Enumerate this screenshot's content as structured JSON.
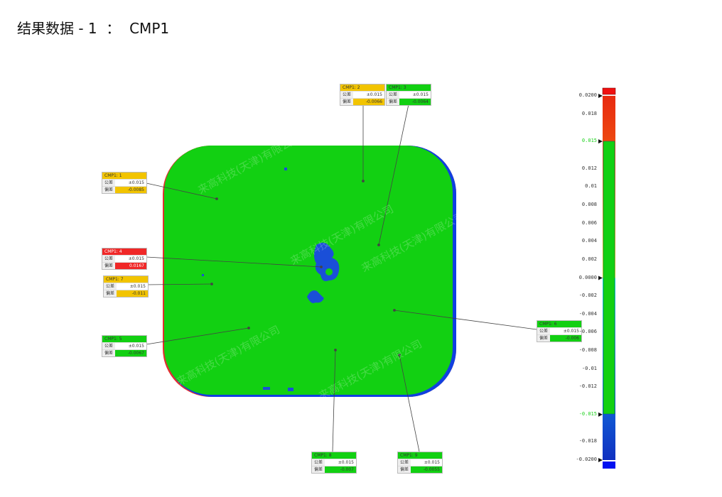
{
  "header": {
    "title": "结果数据 - 1",
    "separator": "：",
    "name": "CMP1"
  },
  "watermark": "来高科技(天津)有限公司",
  "labels": {
    "tolerance": "公差",
    "deviation": "偏差"
  },
  "colors": {
    "in_tolerance": "#12d012",
    "warning": "#f2c400",
    "out_of_tolerance": "#f02828",
    "surface": "#12d012",
    "low_deviation": "#1046d8"
  },
  "callouts": [
    {
      "id": "CMP1: 1",
      "tolerance": "±0.015",
      "deviation": "-0.0085",
      "status": "warning"
    },
    {
      "id": "CMP1: 2",
      "tolerance": "±0.015",
      "deviation": "-0.0066",
      "status": "warning"
    },
    {
      "id": "CMP1: 3",
      "tolerance": "±0.015",
      "deviation": "-0.0064",
      "status": "ok"
    },
    {
      "id": "CMP1: 4",
      "tolerance": "±0.015",
      "deviation": "0.0167",
      "status": "fail"
    },
    {
      "id": "CMP1: 7",
      "tolerance": "±0.015",
      "deviation": "-0.011",
      "status": "warning"
    },
    {
      "id": "CMP1: 5",
      "tolerance": "±0.015",
      "deviation": "-0.0067",
      "status": "ok"
    },
    {
      "id": "CMP1: 6",
      "tolerance": "±0.015",
      "deviation": "-0.006",
      "status": "ok"
    },
    {
      "id": "CMP1: 8",
      "tolerance": "±0.015",
      "deviation": "-0.007",
      "status": "ok"
    },
    {
      "id": "CMP1: 9",
      "tolerance": "±0.015",
      "deviation": "-0.0055",
      "status": "ok"
    }
  ],
  "colorbar": {
    "max": 0.02,
    "min": -0.02,
    "upper_tolerance": 0.015,
    "lower_tolerance": -0.015,
    "ticks": [
      {
        "value": 0.02,
        "label": "0.0200",
        "marker": true
      },
      {
        "value": 0.018,
        "label": "0.018"
      },
      {
        "value": 0.015,
        "label": "0.015",
        "marker": true,
        "highlight": true
      },
      {
        "value": 0.012,
        "label": "0.012"
      },
      {
        "value": 0.01,
        "label": "0.01"
      },
      {
        "value": 0.008,
        "label": "0.008"
      },
      {
        "value": 0.006,
        "label": "0.006"
      },
      {
        "value": 0.004,
        "label": "0.004"
      },
      {
        "value": 0.002,
        "label": "0.002"
      },
      {
        "value": 0,
        "label": "0.0000",
        "marker": true
      },
      {
        "value": -0.002,
        "label": "-0.002"
      },
      {
        "value": -0.004,
        "label": "-0.004"
      },
      {
        "value": -0.006,
        "label": "-0.006"
      },
      {
        "value": -0.008,
        "label": "-0.008"
      },
      {
        "value": -0.01,
        "label": "-0.01"
      },
      {
        "value": -0.012,
        "label": "-0.012"
      },
      {
        "value": -0.015,
        "label": "-0.015",
        "marker": true,
        "highlight": true
      },
      {
        "value": -0.018,
        "label": "-0.018"
      },
      {
        "value": -0.02,
        "label": "-0.0200",
        "marker": true
      }
    ]
  }
}
